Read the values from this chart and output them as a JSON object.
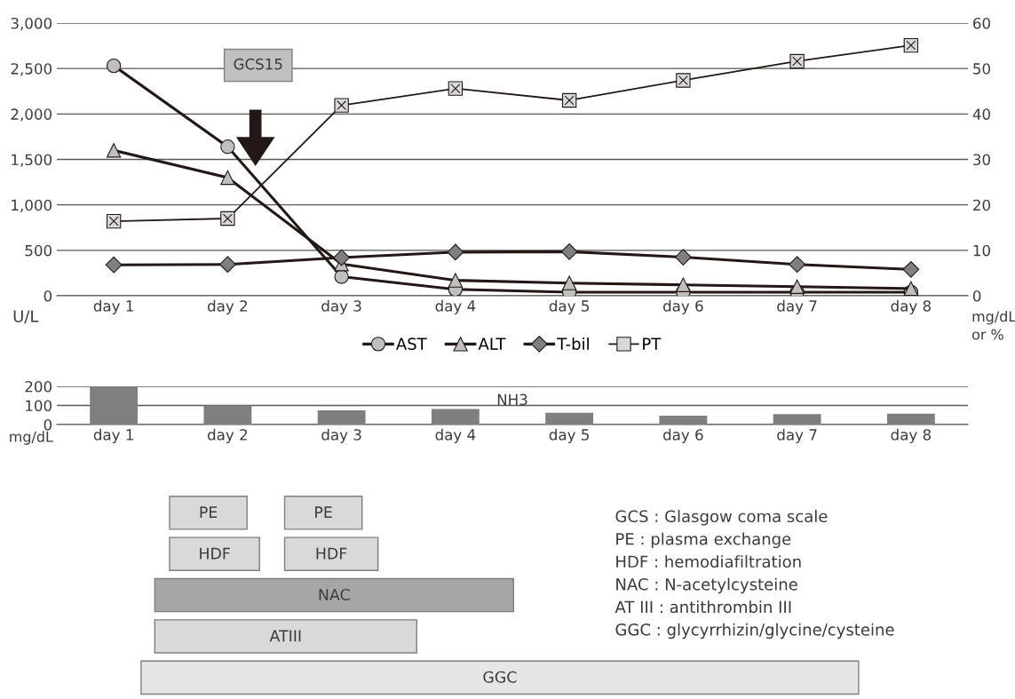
{
  "chart_data": [
    {
      "type": "line",
      "categories": [
        "day 1",
        "day 2",
        "day 3",
        "day 4",
        "day 5",
        "day 6",
        "day 7",
        "day 8"
      ],
      "series": [
        {
          "name": "AST",
          "color": "#bfbfbf",
          "marker": "circle",
          "values": [
            2530,
            1640,
            210,
            70,
            40,
            40,
            40,
            40
          ]
        },
        {
          "name": "ALT",
          "color": "#bfbfbf",
          "marker": "triangle",
          "values": [
            1600,
            1300,
            350,
            170,
            140,
            120,
            100,
            80
          ]
        },
        {
          "name": "T-bil",
          "color": "#7f7f7f",
          "marker": "diamond",
          "axis": "y2",
          "values": [
            6.8,
            6.9,
            8.4,
            9.6,
            9.7,
            8.5,
            6.9,
            5.8
          ]
        },
        {
          "name": "PT",
          "color": "#d9d9d9",
          "marker": "square",
          "axis": "y2",
          "values": [
            16.4,
            17.0,
            41.9,
            45.6,
            43.0,
            47.4,
            51.6,
            55.1
          ]
        }
      ],
      "ylabel": "U/L",
      "y2label": "mg/dL or %",
      "ylim": [
        0,
        3000
      ],
      "yticks": [
        {
          "value": 0,
          "label": "0"
        },
        {
          "value": 500,
          "label": "500"
        },
        {
          "value": 1000,
          "label": "1,000"
        },
        {
          "value": 1500,
          "label": "1,500"
        },
        {
          "value": 2000,
          "label": "2,000"
        },
        {
          "value": 2500,
          "label": "2,500"
        },
        {
          "value": 3000,
          "label": "3,000"
        }
      ],
      "y2lim": [
        0,
        60
      ],
      "y2ticks": [
        0,
        10,
        20,
        30,
        40,
        50,
        60
      ],
      "grid": "y",
      "legend": "bottom",
      "line_style": "solid",
      "annotations": [
        "GCS15"
      ]
    },
    {
      "type": "bar",
      "categories": [
        "day 1",
        "day 2",
        "day 3",
        "day 4",
        "day 5",
        "day 6",
        "day 7",
        "day 8"
      ],
      "values": [
        200,
        100,
        74,
        81,
        62,
        47,
        55,
        57
      ],
      "color": "#7f7f7f",
      "title": "NH3",
      "ylabel": "mg/dL",
      "ylim": [
        0,
        200
      ],
      "yticks": [
        0,
        100,
        200
      ],
      "grid": "y"
    },
    {
      "type": "other",
      "annotations": [
        "PE",
        "PE",
        "HDF",
        "HDF",
        "NAC",
        "ATIII",
        "GGC",
        "GCS : Glasgow coma scale",
        "PE : plasma exchange",
        "HDF : hemodiafiltration",
        "NAC : N-acetylcysteine",
        "AT III : antithrombin III",
        "GGC : glycyrrhizin/glycine/cysteine"
      ]
    }
  ]
}
